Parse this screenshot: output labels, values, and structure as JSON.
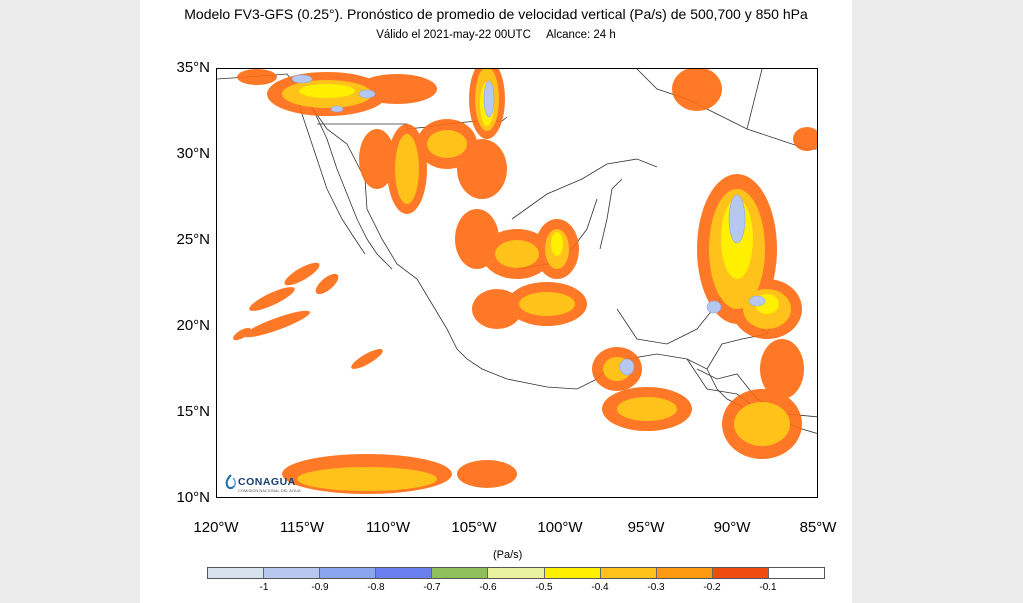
{
  "title": "Modelo FV3-GFS (0.25°). Pronóstico de promedio de velocidad vertical (Pa/s) de 500,700 y 850 hPa",
  "valid": "Válido el 2021-may-22 00UTC",
  "lead": "Alcance: 24 h",
  "map": {
    "lat_labels": [
      "35°N",
      "30°N",
      "25°N",
      "20°N",
      "15°N",
      "10°N"
    ],
    "lon_labels": [
      "120°W",
      "115°W",
      "110°W",
      "105°W",
      "100°W",
      "95°W",
      "90°W",
      "85°W"
    ]
  },
  "colorbar": {
    "units": "(Pa/s)",
    "labels": [
      "-1",
      "-0.9",
      "-0.8",
      "-0.7",
      "-0.6",
      "-0.5",
      "-0.4",
      "-0.3",
      "-0.2",
      "-0.1"
    ],
    "colors": [
      "#d6e2ee",
      "#b6c8f0",
      "#8aa6f0",
      "#6a7ff0",
      "#8fbf5a",
      "#e8f2a0",
      "#fff000",
      "#ffc21a",
      "#ff9a10",
      "#f04c10",
      "#ffffff"
    ]
  },
  "logo": {
    "name": "CONAGUA",
    "tagline": "COMISIÓN NACIONAL DEL AGUA"
  }
}
